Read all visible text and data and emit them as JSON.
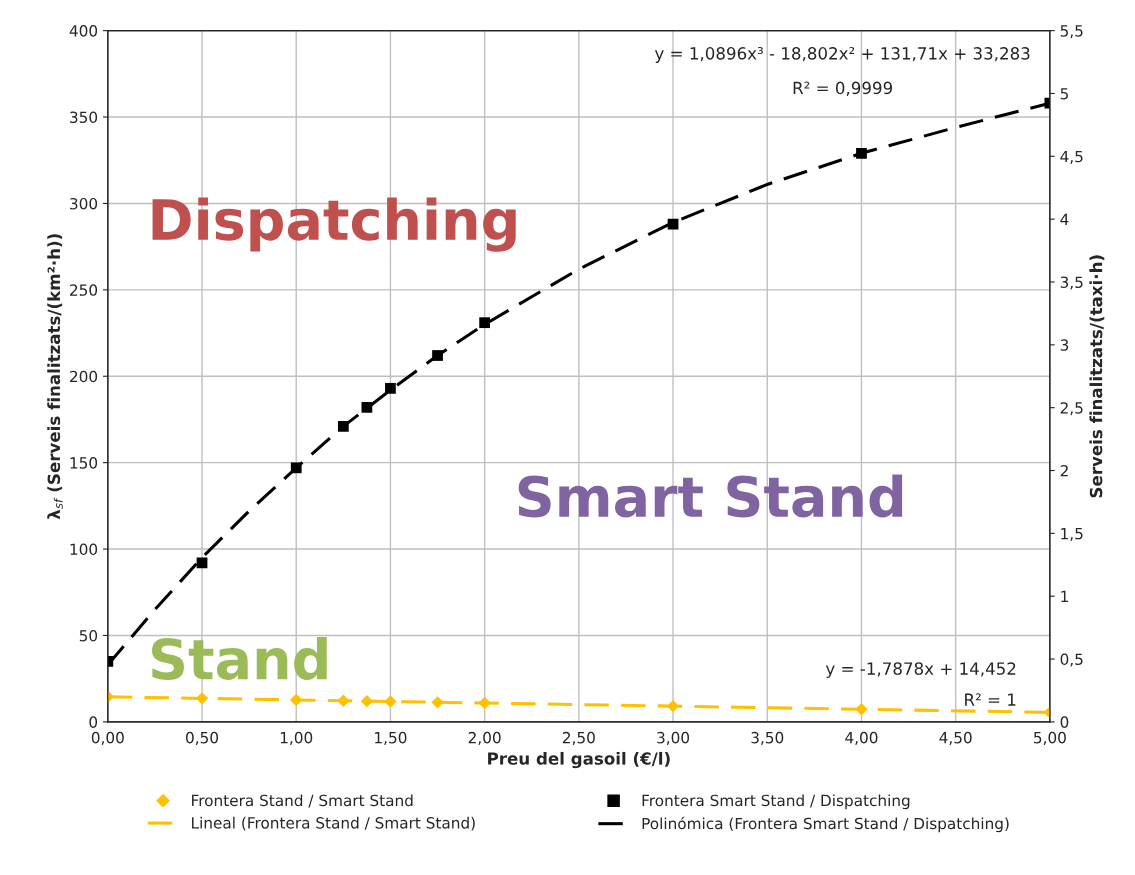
{
  "chart_data": {
    "type": "scatter",
    "xlabel": "Preu del gasoil (€/l)",
    "ylabel": "λ$_{sf}$ (Serveis finalitzats/(km²·h))",
    "y2label": "Serveis finalitzats/(taxi·h)",
    "xlim": [
      0,
      5
    ],
    "xticks": [
      {
        "value": 0,
        "label": "0,00"
      },
      {
        "value": 0.5,
        "label": "0,50"
      },
      {
        "value": 1,
        "label": "1,00"
      },
      {
        "value": 1.5,
        "label": "1,50"
      },
      {
        "value": 2,
        "label": "2,00"
      },
      {
        "value": 2.5,
        "label": "2,50"
      },
      {
        "value": 3,
        "label": "3,00"
      },
      {
        "value": 3.5,
        "label": "3,50"
      },
      {
        "value": 4,
        "label": "4,00"
      },
      {
        "value": 4.5,
        "label": "4,50"
      },
      {
        "value": 5,
        "label": "5,00"
      }
    ],
    "ylim": [
      0,
      400
    ],
    "yticks": [
      0,
      50,
      100,
      150,
      200,
      250,
      300,
      350,
      400
    ],
    "y2lim": [
      0,
      5.5
    ],
    "y2ticks": [
      0,
      {
        "value": 0.5,
        "label": "0,5"
      },
      1,
      {
        "value": 1.5,
        "label": "1,5"
      },
      2,
      {
        "value": 2.5,
        "label": "2,5"
      },
      3,
      {
        "value": 3.5,
        "label": "3,5"
      },
      4,
      {
        "value": 4.5,
        "label": "4,5"
      },
      5,
      {
        "value": 5.5,
        "label": "5,5"
      }
    ],
    "grid": true,
    "legend": "bottom",
    "series": [
      {
        "name": "Frontera Stand / Smart Stand",
        "marker": "diamond",
        "color": "#ffc000",
        "x": [
          0,
          0.5,
          1,
          1.25,
          1.375,
          1.5,
          1.75,
          2,
          3,
          4,
          5
        ],
        "values": [
          14.5,
          13.6,
          12.7,
          12.2,
          12.0,
          11.8,
          11.3,
          10.9,
          9.1,
          7.3,
          5.5
        ]
      },
      {
        "name": "Lineal (Frontera Stand / Smart Stand)",
        "type": "line",
        "line_style": "dashed",
        "marker": "none",
        "color": "#ffc000",
        "x": [
          0,
          1,
          2,
          3,
          4,
          5
        ],
        "values": [
          14.5,
          12.7,
          10.9,
          9.1,
          7.3,
          5.5
        ]
      },
      {
        "name": "Frontera Smart Stand / Dispatching",
        "marker": "square",
        "color": "#000000",
        "x": [
          0,
          0.5,
          1,
          1.25,
          1.375,
          1.5,
          1.75,
          2,
          3,
          4,
          5
        ],
        "values": [
          35,
          92,
          147,
          171,
          182,
          193,
          212,
          231,
          288,
          329,
          358
        ]
      },
      {
        "name": "Polinómica (Frontera Smart Stand / Dispatching)",
        "type": "line",
        "line_style": "dashed",
        "marker": "none",
        "color": "#000000",
        "x": [
          0,
          0.25,
          0.5,
          0.75,
          1,
          1.25,
          1.5,
          1.75,
          2,
          2.5,
          3,
          3.5,
          4,
          4.5,
          5
        ],
        "values": [
          33,
          65,
          95,
          122,
          147,
          171,
          192,
          212,
          230,
          262,
          289,
          311,
          329,
          344,
          358
        ]
      }
    ],
    "annotations": [
      "y = 1,0896x³ - 18,802x² + 131,71x + 33,283",
      "R² = 0,9999",
      "y = -1,7878x + 14,452",
      "R² = 1",
      "Dispatching",
      "Smart Stand",
      "Stand"
    ]
  }
}
